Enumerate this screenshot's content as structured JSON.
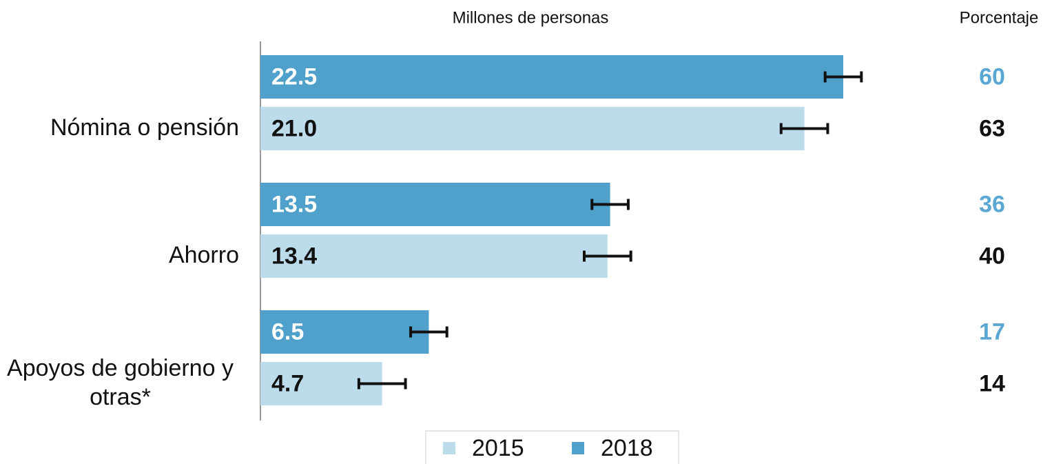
{
  "chart_data": {
    "type": "bar",
    "orientation": "horizontal",
    "title": "Millones de personas",
    "percent_title": "Porcentaje",
    "categories": [
      "Nómina o pensión",
      "Ahorro",
      "Apoyos de gobierno y otras*"
    ],
    "xlim": [
      0,
      30
    ],
    "series": [
      {
        "name": "2015",
        "color": "#bcdcec",
        "label_color": "#111111",
        "values": [
          21.0,
          13.4,
          4.7
        ],
        "value_labels": [
          "21.0",
          "13.4",
          "4.7"
        ],
        "errors": [
          0.9,
          0.9,
          0.9
        ],
        "percent": [
          63,
          40,
          14
        ]
      },
      {
        "name": "2018",
        "color": "#4fa0cb",
        "label_color": "#ffffff",
        "percent_color": "#5aa7d3",
        "values": [
          22.5,
          13.5,
          6.5
        ],
        "value_labels": [
          "22.5",
          "13.5",
          "6.5"
        ],
        "errors": [
          0.7,
          0.7,
          0.7
        ],
        "percent": [
          60,
          36,
          17
        ]
      }
    ]
  }
}
